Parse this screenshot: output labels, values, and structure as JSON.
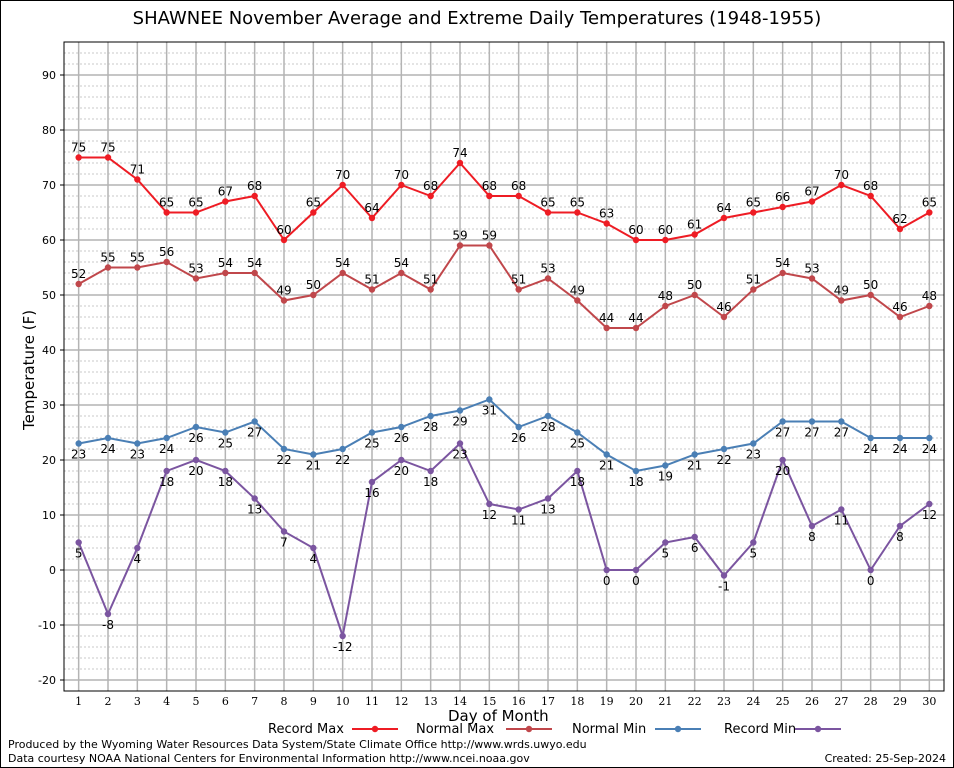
{
  "chart_data": {
    "type": "line",
    "title": "SHAWNEE November Average and Extreme Daily Temperatures (1948-1955)",
    "xlabel": "Day of Month",
    "ylabel": "Temperature (F)",
    "xlim": [
      1,
      30
    ],
    "ylim": [
      -22,
      96
    ],
    "yticks": [
      -20,
      -10,
      0,
      10,
      20,
      30,
      40,
      50,
      60,
      70,
      80,
      90
    ],
    "grid": true,
    "legend_position": "bottom",
    "x": [
      1,
      2,
      3,
      4,
      5,
      6,
      7,
      8,
      9,
      10,
      11,
      12,
      13,
      14,
      15,
      16,
      17,
      18,
      19,
      20,
      21,
      22,
      23,
      24,
      25,
      26,
      27,
      28,
      29,
      30
    ],
    "series": [
      {
        "name": "Record Max",
        "color": "#ee1c24",
        "values": [
          75,
          75,
          71,
          65,
          65,
          67,
          68,
          60,
          65,
          70,
          64,
          70,
          68,
          74,
          68,
          68,
          65,
          65,
          63,
          60,
          60,
          61,
          64,
          65,
          66,
          67,
          70,
          68,
          62,
          65
        ]
      },
      {
        "name": "Normal Max",
        "color": "#c0474b",
        "values": [
          52,
          55,
          55,
          56,
          53,
          54,
          54,
          49,
          50,
          54,
          51,
          54,
          51,
          59,
          59,
          51,
          53,
          49,
          44,
          44,
          48,
          50,
          46,
          51,
          54,
          53,
          49,
          50,
          46,
          48
        ]
      },
      {
        "name": "Normal Min",
        "color": "#4a7fb5",
        "values": [
          23,
          24,
          23,
          24,
          26,
          25,
          27,
          22,
          21,
          22,
          25,
          26,
          28,
          29,
          31,
          26,
          28,
          25,
          21,
          18,
          19,
          21,
          22,
          23,
          27,
          27,
          27,
          24,
          24,
          24
        ]
      },
      {
        "name": "Record Min",
        "color": "#7b55a0",
        "values": [
          5,
          -8,
          4,
          18,
          20,
          18,
          13,
          7,
          4,
          -12,
          16,
          20,
          18,
          23,
          12,
          11,
          13,
          18,
          0,
          0,
          5,
          6,
          -1,
          5,
          20,
          8,
          11,
          0,
          8,
          12
        ]
      }
    ]
  },
  "footer": {
    "credit_line1": "Produced by the Wyoming Water Resources Data System/State Climate Office http://www.wrds.uwyo.edu",
    "credit_line2": "Data courtesy NOAA National Centers for Environmental Information http://www.ncei.noaa.gov",
    "created": "Created:  25-Sep-2024"
  }
}
